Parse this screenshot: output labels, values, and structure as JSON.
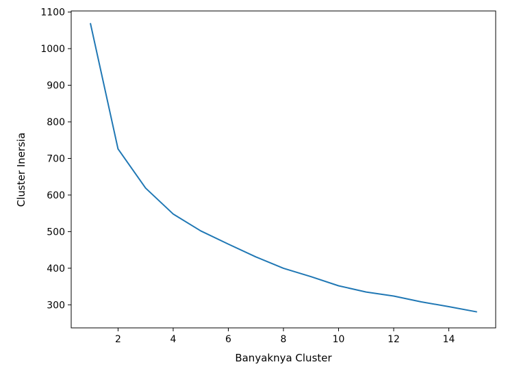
{
  "chart_data": {
    "type": "line",
    "title": "",
    "xlabel": "Banyaknya Cluster",
    "ylabel": "Cluster Inersia",
    "xlim": [
      0.3,
      15.7
    ],
    "ylim": [
      237,
      1103
    ],
    "xticks": [
      2,
      4,
      6,
      8,
      10,
      12,
      14
    ],
    "yticks": [
      300,
      400,
      500,
      600,
      700,
      800,
      900,
      1000,
      1100
    ],
    "grid": false,
    "legend": "none",
    "series": [
      {
        "color": "#1f77b4",
        "x": [
          1,
          2,
          3,
          4,
          5,
          6,
          7,
          8,
          9,
          10,
          11,
          12,
          13,
          14,
          15
        ],
        "y": [
          1068,
          726,
          619,
          548,
          502,
          466,
          431,
          400,
          377,
          352,
          335,
          324,
          308,
          295,
          281
        ]
      }
    ]
  }
}
